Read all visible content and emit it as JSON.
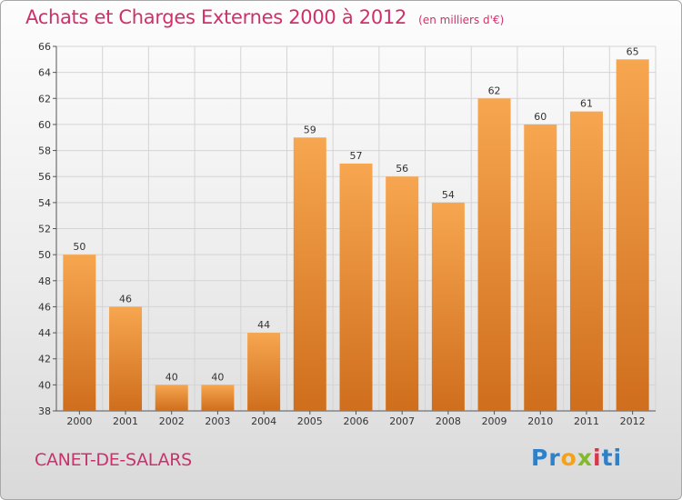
{
  "header": {
    "title": "Achats et Charges Externes 2000 à 2012",
    "unit": "(en milliers d'€)"
  },
  "footer": {
    "city": "CANET-DE-SALARS",
    "brand": "Proxiti",
    "brand_letters": [
      "P",
      "r",
      "o",
      "x",
      "i",
      "ti"
    ]
  },
  "colors": {
    "bar_top": "#f7a650",
    "bar_bottom": "#cf6e1c",
    "title": "#d0306a",
    "grid": "#d4d4d4"
  },
  "chart_data": {
    "type": "bar",
    "title": "Achats et Charges Externes 2000 à 2012",
    "subtitle": "(en milliers d'€)",
    "xlabel": "",
    "ylabel": "",
    "categories": [
      "2000",
      "2001",
      "2002",
      "2003",
      "2004",
      "2005",
      "2006",
      "2007",
      "2008",
      "2009",
      "2010",
      "2011",
      "2012"
    ],
    "values": [
      50,
      46,
      40,
      40,
      44,
      59,
      57,
      56,
      54,
      62,
      60,
      61,
      65
    ],
    "ylim": [
      38,
      66
    ],
    "yticks": [
      38,
      40,
      42,
      44,
      46,
      48,
      50,
      52,
      54,
      56,
      58,
      60,
      62,
      64,
      66
    ],
    "grid": true,
    "legend": "none"
  }
}
